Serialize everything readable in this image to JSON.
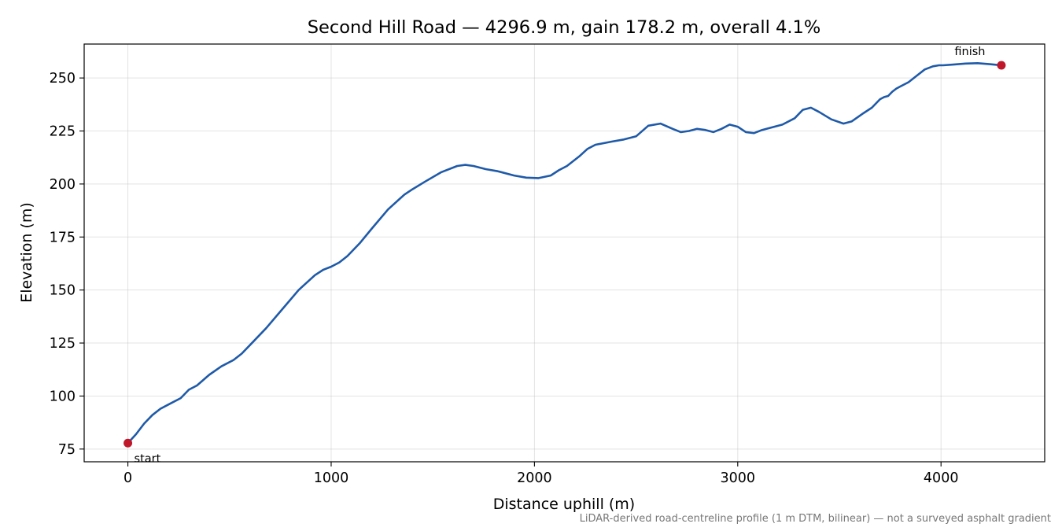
{
  "chart_data": {
    "type": "line",
    "title": "Second Hill Road — 4296.9 m, gain 178.2 m, overall 4.1%",
    "xlabel": "Distance uphill (m)",
    "ylabel": "Elevation (m)",
    "xlim": [
      -215,
      4510
    ],
    "ylim": [
      69,
      266
    ],
    "xticks": [
      0,
      1000,
      2000,
      3000,
      4000
    ],
    "yticks": [
      75,
      100,
      125,
      150,
      175,
      200,
      225,
      250
    ],
    "xtick_labels": [
      "0",
      "1000",
      "2000",
      "3000",
      "4000"
    ],
    "ytick_labels": [
      "75",
      "100",
      "125",
      "150",
      "175",
      "200",
      "225",
      "250"
    ],
    "grid": true,
    "series": [
      {
        "color": "#1f5aa8",
        "x": [
          0,
          40,
          80,
          120,
          160,
          200,
          260,
          300,
          340,
          400,
          460,
          520,
          560,
          600,
          680,
          760,
          840,
          920,
          960,
          1000,
          1040,
          1080,
          1140,
          1200,
          1280,
          1360,
          1400,
          1460,
          1540,
          1620,
          1660,
          1700,
          1760,
          1820,
          1900,
          1960,
          2020,
          2080,
          2120,
          2160,
          2220,
          2260,
          2300,
          2380,
          2440,
          2500,
          2560,
          2620,
          2680,
          2720,
          2760,
          2800,
          2840,
          2880,
          2920,
          2960,
          3000,
          3040,
          3080,
          3120,
          3160,
          3220,
          3280,
          3320,
          3360,
          3400,
          3460,
          3520,
          3560,
          3620,
          3660,
          3700,
          3720,
          3740,
          3760,
          3780,
          3800,
          3840,
          3880,
          3920,
          3960,
          3990,
          4010,
          4060,
          4120,
          4180,
          4240,
          4296.9
        ],
        "y": [
          77.8,
          82,
          87,
          91,
          94,
          96,
          99,
          103,
          105,
          110,
          114,
          117,
          120,
          124,
          132,
          141,
          150,
          157,
          159.5,
          161,
          163,
          166,
          172,
          179,
          188,
          195,
          197.5,
          201,
          205.5,
          208.5,
          209,
          208.5,
          207,
          206,
          204,
          203,
          202.8,
          204,
          206.5,
          208.5,
          213,
          216.5,
          218.5,
          220,
          221,
          222.5,
          227.5,
          228.5,
          226,
          224.5,
          225,
          226,
          225.5,
          224.5,
          226,
          228,
          227,
          224.5,
          224,
          225.5,
          226.5,
          228,
          231,
          235,
          236,
          234,
          230.5,
          228.5,
          229.5,
          233.5,
          236,
          240,
          241,
          241.5,
          243.5,
          245,
          246,
          248,
          251,
          254,
          255.5,
          256,
          256,
          256.3,
          256.8,
          257,
          256.5,
          256
        ]
      }
    ],
    "markers": [
      {
        "x": 0,
        "y": 77.8,
        "label": "start",
        "color": "#c0182a"
      },
      {
        "x": 4296.9,
        "y": 256,
        "label": "finish",
        "color": "#c0182a"
      }
    ],
    "footnote": "LiDAR-derived road-centreline profile (1 m DTM, bilinear) — not a surveyed asphalt gradient"
  }
}
